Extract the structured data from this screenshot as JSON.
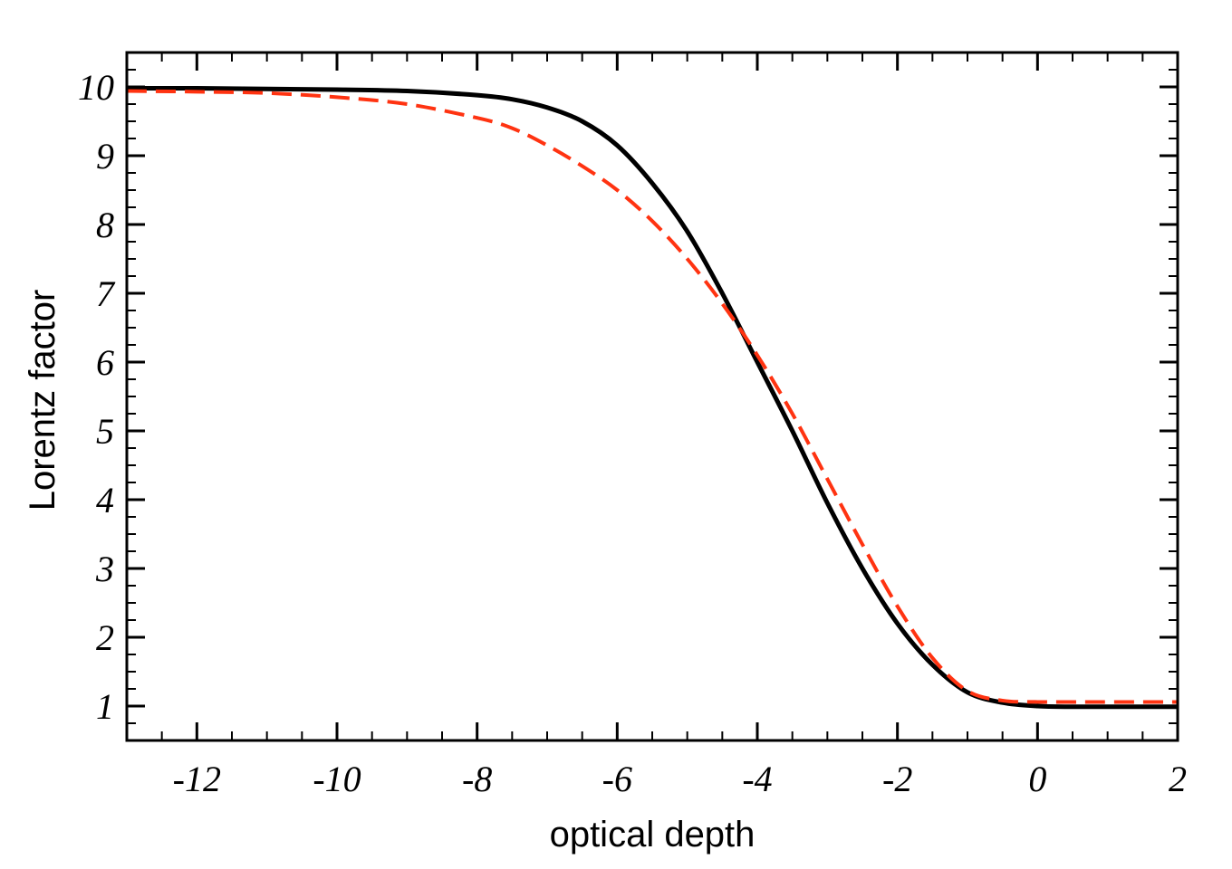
{
  "chart_data": {
    "type": "line",
    "title": "",
    "xlabel": "optical depth",
    "ylabel": "Lorentz factor",
    "xlim": [
      -13,
      2
    ],
    "ylim": [
      0.5,
      10.5
    ],
    "x_ticks": [
      -12,
      -10,
      -8,
      -6,
      -4,
      -2,
      0,
      2
    ],
    "x_tick_labels": [
      "-12",
      "-10",
      "-8",
      "-6",
      "-4",
      "-2",
      "0",
      "2"
    ],
    "y_ticks": [
      1,
      2,
      3,
      4,
      5,
      6,
      7,
      8,
      9,
      10
    ],
    "y_tick_labels": [
      "1",
      "2",
      "3",
      "4",
      "5",
      "6",
      "7",
      "8",
      "9",
      "10"
    ],
    "grid": false,
    "legend": "none",
    "series": [
      {
        "style": "solid",
        "color": "#000000",
        "x": [
          -13,
          -12,
          -11,
          -10,
          -9,
          -8,
          -7.5,
          -7,
          -6.5,
          -6,
          -5.5,
          -5,
          -4.5,
          -4,
          -3.5,
          -3,
          -2.5,
          -2,
          -1.5,
          -1,
          -0.5,
          0,
          0.5,
          1,
          2
        ],
        "y": [
          9.98,
          9.98,
          9.97,
          9.96,
          9.94,
          9.88,
          9.82,
          9.7,
          9.5,
          9.15,
          8.6,
          7.9,
          7.0,
          6.0,
          5.0,
          3.95,
          3.0,
          2.2,
          1.6,
          1.2,
          1.05,
          1.0,
          0.99,
          0.99,
          0.99
        ]
      },
      {
        "style": "dashed",
        "color": "#ff3311",
        "x": [
          -13,
          -12,
          -11,
          -10,
          -9,
          -8,
          -7.5,
          -7,
          -6.5,
          -6,
          -5.5,
          -5,
          -4.5,
          -4,
          -3.5,
          -3,
          -2.5,
          -2,
          -1.5,
          -1,
          -0.5,
          0,
          0.5,
          1,
          2
        ],
        "y": [
          9.94,
          9.93,
          9.91,
          9.85,
          9.75,
          9.55,
          9.4,
          9.15,
          8.85,
          8.5,
          8.05,
          7.5,
          6.85,
          6.1,
          5.25,
          4.3,
          3.35,
          2.45,
          1.7,
          1.22,
          1.08,
          1.06,
          1.06,
          1.06,
          1.06
        ]
      }
    ]
  }
}
